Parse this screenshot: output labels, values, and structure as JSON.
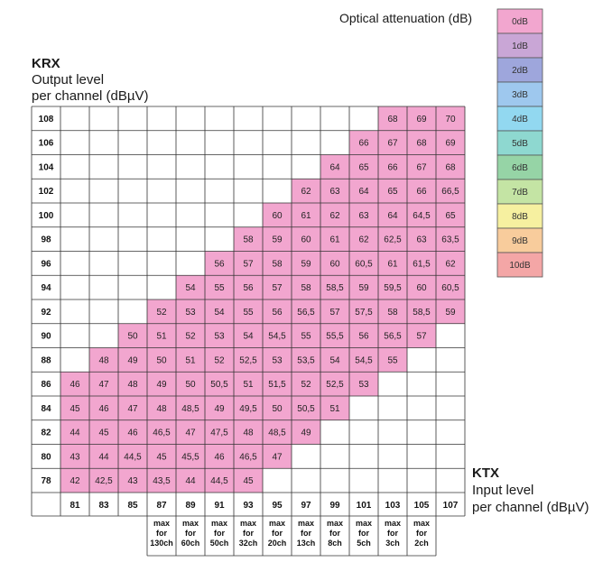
{
  "chart_data": {
    "type": "table",
    "legend_title": "Optical attenuation (dB)",
    "y_title": "KRX",
    "y_subtitle_line1": "Output level",
    "y_subtitle_line2": "per channel (dBµV)",
    "x_title": "KTX",
    "x_subtitle_line1": "Input level",
    "x_subtitle_line2": "per channel (dBµV)",
    "x_categories": [
      "81",
      "83",
      "85",
      "87",
      "89",
      "91",
      "93",
      "95",
      "97",
      "99",
      "101",
      "103",
      "105",
      "107"
    ],
    "y_categories": [
      "108",
      "106",
      "104",
      "102",
      "100",
      "98",
      "96",
      "94",
      "92",
      "90",
      "88",
      "86",
      "84",
      "82",
      "80",
      "78"
    ],
    "column_notes": [
      null,
      null,
      null,
      [
        "max",
        "for",
        "130ch"
      ],
      [
        "max",
        "for",
        "60ch"
      ],
      [
        "max",
        "for",
        "50ch"
      ],
      [
        "max",
        "for",
        "32ch"
      ],
      [
        "max",
        "for",
        "20ch"
      ],
      [
        "max",
        "for",
        "13ch"
      ],
      [
        "max",
        "for",
        "8ch"
      ],
      [
        "max",
        "for",
        "5ch"
      ],
      [
        "max",
        "for",
        "3ch"
      ],
      [
        "max",
        "for",
        "2ch"
      ],
      null
    ],
    "legend": [
      {
        "label": "0dB",
        "color": "#f2a6cf"
      },
      {
        "label": "1dB",
        "color": "#c9a6d6"
      },
      {
        "label": "2dB",
        "color": "#9ea6dc"
      },
      {
        "label": "3dB",
        "color": "#9ec8ee"
      },
      {
        "label": "4dB",
        "color": "#92d8f0"
      },
      {
        "label": "5dB",
        "color": "#8ed8d0"
      },
      {
        "label": "6dB",
        "color": "#96d4a6"
      },
      {
        "label": "7dB",
        "color": "#c4e4a4"
      },
      {
        "label": "8dB",
        "color": "#f6f0a0"
      },
      {
        "label": "9dB",
        "color": "#f8cc9c"
      },
      {
        "label": "10dB",
        "color": "#f4a6a6"
      }
    ],
    "rows": [
      {
        "y": "108",
        "start": 11,
        "values": [
          "68",
          "69",
          "70"
        ]
      },
      {
        "y": "106",
        "start": 10,
        "values": [
          "66",
          "67",
          "68",
          "69"
        ]
      },
      {
        "y": "104",
        "start": 9,
        "values": [
          "64",
          "65",
          "66",
          "67",
          "68"
        ]
      },
      {
        "y": "102",
        "start": 8,
        "values": [
          "62",
          "63",
          "64",
          "65",
          "66",
          "66,5"
        ]
      },
      {
        "y": "100",
        "start": 7,
        "values": [
          "60",
          "61",
          "62",
          "63",
          "64",
          "64,5",
          "65"
        ]
      },
      {
        "y": "98",
        "start": 6,
        "values": [
          "58",
          "59",
          "60",
          "61",
          "62",
          "62,5",
          "63",
          "63,5"
        ]
      },
      {
        "y": "96",
        "start": 5,
        "values": [
          "56",
          "57",
          "58",
          "59",
          "60",
          "60,5",
          "61",
          "61,5",
          "62"
        ]
      },
      {
        "y": "94",
        "start": 4,
        "values": [
          "54",
          "55",
          "56",
          "57",
          "58",
          "58,5",
          "59",
          "59,5",
          "60",
          "60,5"
        ]
      },
      {
        "y": "92",
        "start": 3,
        "values": [
          "52",
          "53",
          "54",
          "55",
          "56",
          "56,5",
          "57",
          "57,5",
          "58",
          "58,5",
          "59"
        ]
      },
      {
        "y": "90",
        "start": 2,
        "values": [
          "50",
          "51",
          "52",
          "53",
          "54",
          "54,5",
          "55",
          "55,5",
          "56",
          "56,5",
          "57"
        ]
      },
      {
        "y": "88",
        "start": 1,
        "values": [
          "48",
          "49",
          "50",
          "51",
          "52",
          "52,5",
          "53",
          "53,5",
          "54",
          "54,5",
          "55"
        ]
      },
      {
        "y": "86",
        "start": 0,
        "values": [
          "46",
          "47",
          "48",
          "49",
          "50",
          "50,5",
          "51",
          "51,5",
          "52",
          "52,5",
          "53"
        ]
      },
      {
        "y": "84",
        "start": 0,
        "values": [
          "45",
          "46",
          "47",
          "48",
          "48,5",
          "49",
          "49,5",
          "50",
          "50,5",
          "51"
        ]
      },
      {
        "y": "82",
        "start": 0,
        "values": [
          "44",
          "45",
          "46",
          "46,5",
          "47",
          "47,5",
          "48",
          "48,5",
          "49"
        ]
      },
      {
        "y": "80",
        "start": 0,
        "values": [
          "43",
          "44",
          "44,5",
          "45",
          "45,5",
          "46",
          "46,5",
          "47"
        ]
      },
      {
        "y": "78",
        "start": 0,
        "values": [
          "42",
          "42,5",
          "43",
          "43,5",
          "44",
          "44,5",
          "45"
        ]
      }
    ]
  }
}
